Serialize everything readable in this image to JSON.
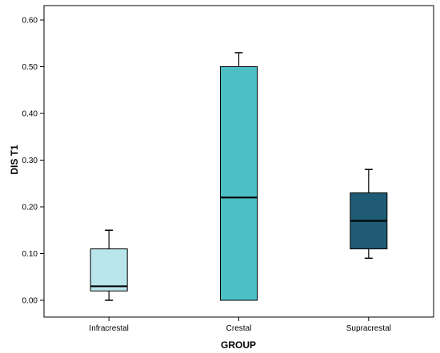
{
  "chart_data": {
    "type": "boxplot",
    "xlabel": "GROUP",
    "ylabel": "DIS T1",
    "ylim": [
      0,
      0.64
    ],
    "y_ticks": [
      "0.00",
      "0.10",
      "0.20",
      "0.30",
      "0.40",
      "0.50",
      "0.60"
    ],
    "y_tick_values": [
      0,
      0.1,
      0.2,
      0.3,
      0.4,
      0.5,
      0.6
    ],
    "grid": false,
    "categories": [
      "Infracrestal",
      "Crestal",
      "Supracrestal"
    ],
    "boxes": [
      {
        "category": "Infracrestal",
        "min": 0.0,
        "q1": 0.02,
        "median": 0.03,
        "q3": 0.11,
        "max": 0.15,
        "color": "#b8e6ea"
      },
      {
        "category": "Crestal",
        "min": 0.0,
        "q1": 0.0,
        "median": 0.22,
        "q3": 0.5,
        "max": 0.53,
        "color": "#4dc0c6"
      },
      {
        "category": "Supracrestal",
        "min": 0.09,
        "q1": 0.11,
        "median": 0.17,
        "q3": 0.23,
        "max": 0.28,
        "color": "#1f5b75"
      }
    ]
  }
}
